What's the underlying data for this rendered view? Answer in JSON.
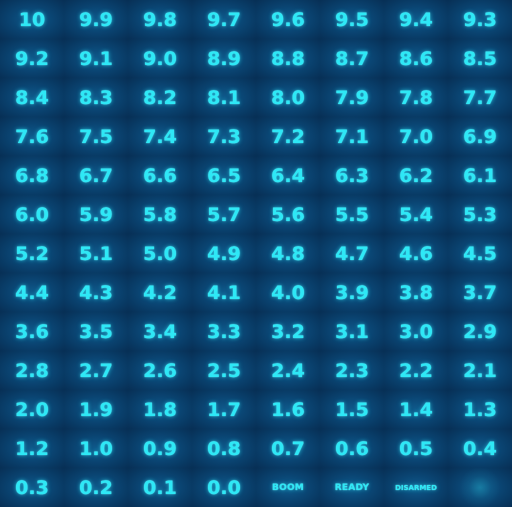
{
  "sheet": {
    "numbers": [
      "10",
      "9.9",
      "9.8",
      "9.7",
      "9.6",
      "9.5",
      "9.4",
      "9.3",
      "9.2",
      "9.1",
      "9.0",
      "8.9",
      "8.8",
      "8.7",
      "8.6",
      "8.5",
      "8.4",
      "8.3",
      "8.2",
      "8.1",
      "8.0",
      "7.9",
      "7.8",
      "7.7",
      "7.6",
      "7.5",
      "7.4",
      "7.3",
      "7.2",
      "7.1",
      "7.0",
      "6.9",
      "6.8",
      "6.7",
      "6.6",
      "6.5",
      "6.4",
      "6.3",
      "6.2",
      "6.1",
      "6.0",
      "5.9",
      "5.8",
      "5.7",
      "5.6",
      "5.5",
      "5.4",
      "5.3",
      "5.2",
      "5.1",
      "5.0",
      "4.9",
      "4.8",
      "4.7",
      "4.6",
      "4.5",
      "4.4",
      "4.3",
      "4.2",
      "4.1",
      "4.0",
      "3.9",
      "3.8",
      "3.7",
      "3.6",
      "3.5",
      "3.4",
      "3.3",
      "3.2",
      "3.1",
      "3.0",
      "2.9",
      "2.8",
      "2.7",
      "2.6",
      "2.5",
      "2.4",
      "2.3",
      "2.2",
      "2.1",
      "2.0",
      "1.9",
      "1.8",
      "1.7",
      "1.6",
      "1.5",
      "1.4",
      "1.3",
      "1.2",
      "1.0",
      "0.9",
      "0.8",
      "0.7",
      "0.6",
      "0.5",
      "0.4",
      "0.3",
      "0.2",
      "0.1",
      "0.0"
    ],
    "status_labels": [
      "BOOM",
      "READY",
      "DISARMED"
    ],
    "colors": {
      "text_glow": "#2ee8f6",
      "cell_center": "#0f5a8c",
      "cell_edge": "#072f55"
    }
  }
}
